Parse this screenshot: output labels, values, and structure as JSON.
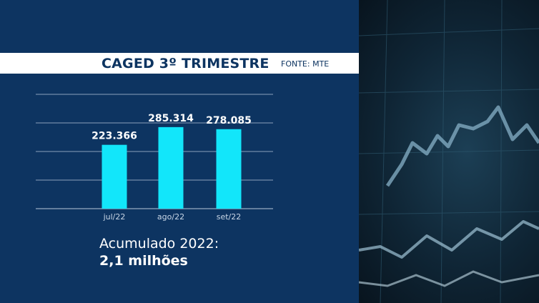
{
  "header": {
    "title": "CAGED 3º TRIMESTRE",
    "source": "FONTE: MTE"
  },
  "summary": {
    "label": "Acumulado 2022:",
    "value": "2,1 milhões"
  },
  "colors": {
    "panel": "#0d3461",
    "bar": "#12e6fa",
    "text": "#ffffff",
    "axis_text": "#c8d6e6"
  },
  "chart_data": {
    "type": "bar",
    "title": "CAGED 3º TRIMESTRE",
    "categories": [
      "jul/22",
      "ago/22",
      "set/22"
    ],
    "values": [
      223366,
      285314,
      278085
    ],
    "value_labels": [
      "223.366",
      "285.314",
      "278.085"
    ],
    "ylim": [
      0,
      400000
    ],
    "grid": true
  }
}
